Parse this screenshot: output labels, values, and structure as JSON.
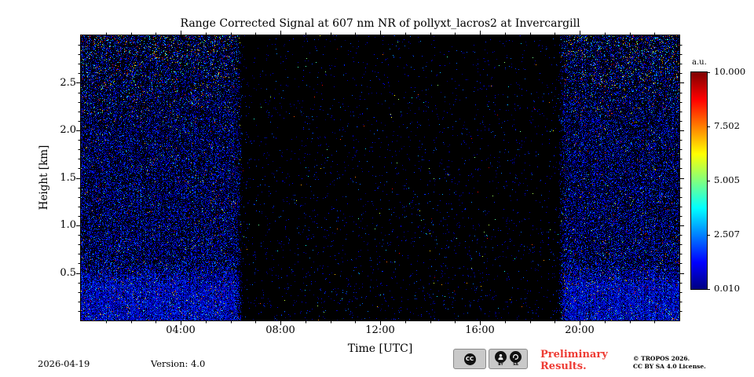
{
  "chart_data": {
    "type": "heatmap",
    "title": "Range Corrected Signal at 607 nm NR of pollyxt_lacros2 at Invercargill",
    "xlabel": "Time [UTC]",
    "ylabel": "Height [km]",
    "xlim_hours": [
      0,
      24
    ],
    "ylim_km": [
      0,
      3.0
    ],
    "x_major_ticks": [
      {
        "hour": 4,
        "label": "04:00"
      },
      {
        "hour": 8,
        "label": "08:00"
      },
      {
        "hour": 12,
        "label": "12:00"
      },
      {
        "hour": 16,
        "label": "16:00"
      },
      {
        "hour": 20,
        "label": "20:00"
      }
    ],
    "x_minor_step_hours": 1,
    "y_major_ticks": [
      {
        "km": 0.5,
        "label": "0.5"
      },
      {
        "km": 1.0,
        "label": "1.0"
      },
      {
        "km": 1.5,
        "label": "1.5"
      },
      {
        "km": 2.0,
        "label": "2.0"
      },
      {
        "km": 2.5,
        "label": "2.5"
      }
    ],
    "y_minor_step_km": 0.1,
    "background_color": "#000000",
    "colormap": "jet",
    "colorbar": {
      "unit_label": "a.u.",
      "min": 0.01,
      "max": 10.0,
      "ticks": [
        {
          "value": 10.0,
          "label": "10.000"
        },
        {
          "value": 7.502,
          "label": "7.502"
        },
        {
          "value": 5.005,
          "label": "5.005"
        },
        {
          "value": 2.507,
          "label": "2.507"
        },
        {
          "value": 0.01,
          "label": "0.010"
        }
      ]
    },
    "signal": {
      "seed": 1337,
      "night_intervals_utc": [
        [
          0,
          6.5
        ],
        [
          19.15,
          24
        ]
      ],
      "edge_fade_hours": 0.3,
      "day_background_speckle_density": 0.016,
      "night_speckle_density_low_altitude": 0.85,
      "night_speckle_density_base": 0.45,
      "night_speckle_density_top": 0.3,
      "dense_surface_layer_top_km": 0.35,
      "bright_speckle_min_altitude_km": 2.0
    },
    "description": "PollyXT lidar quicklook of 607 nm near-range Raman channel: dense blue/cyan speckle signal during night hours (before ~06:30 UTC and after ~19:10 UTC, with green/yellow speckles above ~2 km), near-black background with sparse noise during daylight."
  },
  "footer": {
    "date": "2026-04-19",
    "version": "Version: 4.0",
    "preliminary": "Preliminary Results.",
    "preliminary_color": "#ee3b33",
    "copyright": [
      "© TROPOS 2026.",
      "CC BY SA 4.0 License."
    ],
    "cc_badge": {
      "cc": "CC",
      "by": "BY",
      "sa": "SA"
    }
  }
}
